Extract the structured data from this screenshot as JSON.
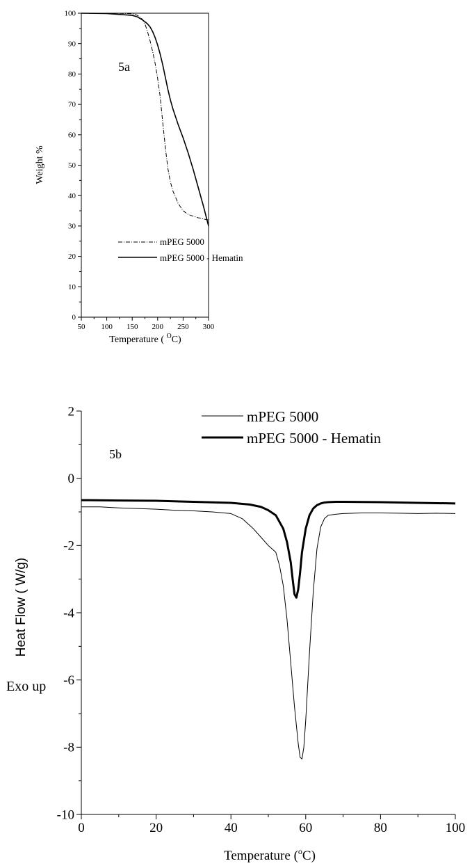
{
  "chart_data": [
    {
      "type": "line",
      "panel_label": "5a",
      "xlabel_text": "Temperature ( ",
      "xlabel_unit_sup": "O",
      "xlabel_unit": "C)",
      "ylabel": "Weight %",
      "xlim": [
        50,
        300
      ],
      "ylim": [
        0,
        100
      ],
      "x_ticks": [
        50,
        100,
        150,
        200,
        250,
        300
      ],
      "y_ticks": [
        0,
        10,
        20,
        30,
        40,
        50,
        60,
        70,
        80,
        90,
        100
      ],
      "grid": false,
      "legend_position": "lower-left",
      "series": [
        {
          "name": "mPEG 5000",
          "style": "dash-dot",
          "x": [
            50,
            100,
            140,
            150,
            155,
            160,
            165,
            170,
            175,
            180,
            185,
            190,
            195,
            200,
            205,
            210,
            215,
            220,
            225,
            230,
            240,
            250,
            260,
            270,
            280,
            290,
            300
          ],
          "y": [
            100,
            100,
            99.9,
            99.8,
            99.6,
            99.3,
            98.8,
            98,
            96.5,
            94,
            91,
            87.5,
            83.5,
            78.5,
            72.5,
            64,
            56,
            49,
            44.5,
            41.5,
            37.5,
            35,
            33.8,
            33.2,
            32.7,
            32.3,
            32
          ]
        },
        {
          "name": "mPEG 5000 - Hematin",
          "style": "solid",
          "x": [
            50,
            100,
            150,
            160,
            170,
            175,
            180,
            185,
            190,
            195,
            200,
            205,
            210,
            215,
            220,
            225,
            230,
            240,
            250,
            260,
            270,
            280,
            290,
            300
          ],
          "y": [
            100,
            99.9,
            99.3,
            98.8,
            97.8,
            97.2,
            96.5,
            95.5,
            94,
            92,
            89.5,
            86.5,
            83,
            79,
            75,
            71.5,
            68.5,
            63.5,
            59,
            54,
            48.5,
            42.5,
            36.5,
            30
          ]
        }
      ]
    },
    {
      "type": "line",
      "panel_label": "5b",
      "xlabel_text": "Temperature (",
      "xlabel_unit_sup": "o",
      "xlabel_unit": "C)",
      "ylabel": "Heat Flow ( W/g)",
      "side_annotation": "Exo up",
      "xlim": [
        0,
        100
      ],
      "ylim": [
        -10,
        2
      ],
      "x_ticks": [
        0,
        20,
        40,
        60,
        80,
        100
      ],
      "y_ticks": [
        2,
        0,
        -2,
        -4,
        -6,
        -8,
        -10
      ],
      "grid": false,
      "legend_position": "top",
      "series": [
        {
          "name": "mPEG 5000",
          "style": "thin",
          "x": [
            0,
            5,
            10,
            15,
            20,
            25,
            30,
            35,
            40,
            43,
            46,
            48,
            50,
            52,
            53,
            54,
            55,
            56,
            57,
            58,
            58.5,
            59,
            59.5,
            60,
            61,
            62,
            63,
            64,
            65,
            66,
            68,
            70,
            75,
            80,
            85,
            90,
            95,
            100
          ],
          "y": [
            -0.85,
            -0.85,
            -0.88,
            -0.9,
            -0.92,
            -0.95,
            -0.97,
            -1.0,
            -1.05,
            -1.2,
            -1.5,
            -1.75,
            -2.0,
            -2.2,
            -2.6,
            -3.2,
            -4.2,
            -5.5,
            -6.8,
            -7.9,
            -8.3,
            -8.35,
            -8.0,
            -7.2,
            -5.2,
            -3.4,
            -2.1,
            -1.45,
            -1.2,
            -1.1,
            -1.07,
            -1.05,
            -1.03,
            -1.03,
            -1.04,
            -1.05,
            -1.04,
            -1.05
          ]
        },
        {
          "name": "mPEG 5000 - Hematin",
          "style": "thick",
          "x": [
            0,
            10,
            20,
            30,
            40,
            45,
            48,
            50,
            52,
            54,
            55,
            56,
            56.5,
            57,
            57.5,
            58,
            58.5,
            59,
            60,
            61,
            62,
            63,
            64,
            65,
            66,
            68,
            70,
            80,
            90,
            100
          ],
          "y": [
            -0.65,
            -0.66,
            -0.67,
            -0.7,
            -0.73,
            -0.78,
            -0.85,
            -0.95,
            -1.1,
            -1.5,
            -1.9,
            -2.5,
            -3.0,
            -3.45,
            -3.55,
            -3.3,
            -2.8,
            -2.2,
            -1.5,
            -1.1,
            -0.9,
            -0.8,
            -0.75,
            -0.72,
            -0.71,
            -0.7,
            -0.7,
            -0.71,
            -0.73,
            -0.75
          ]
        }
      ]
    }
  ]
}
